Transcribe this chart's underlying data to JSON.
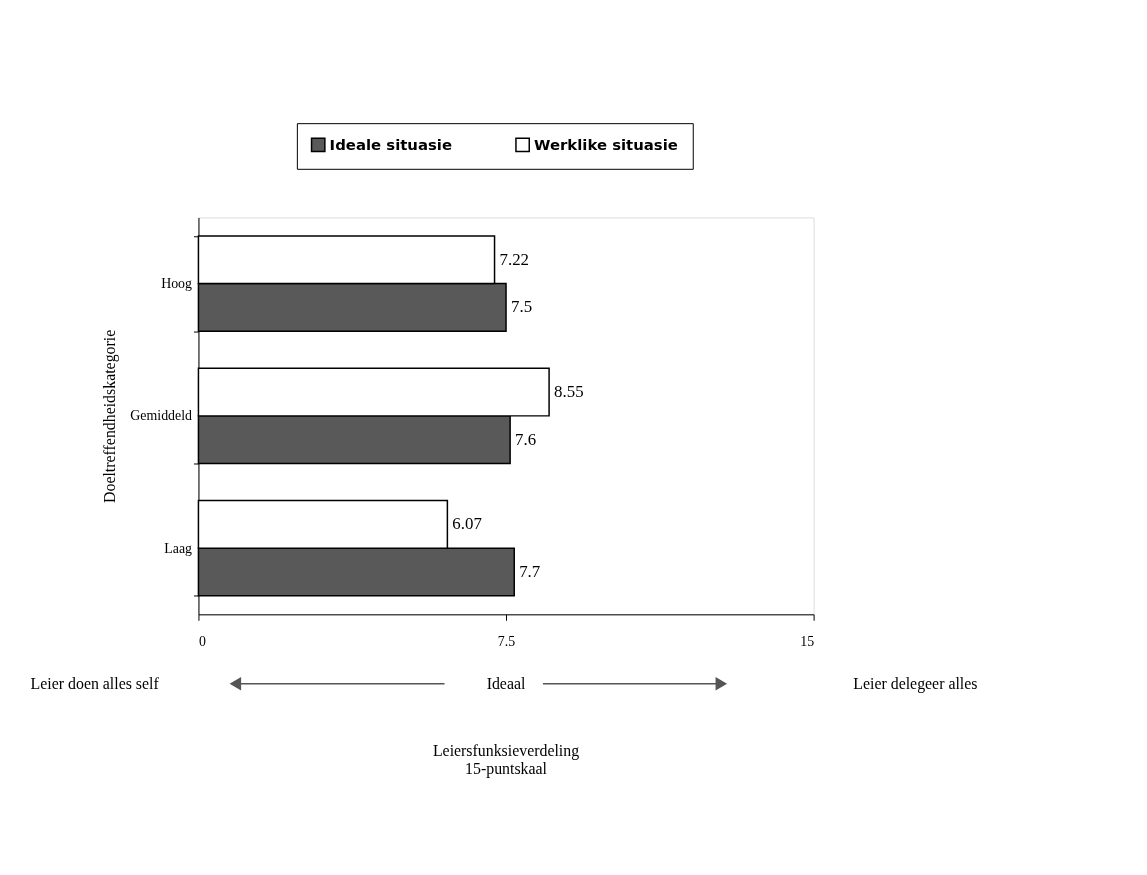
{
  "chart_data": {
    "type": "bar",
    "orientation": "horizontal",
    "categories": [
      "Hoog",
      "Gemiddeld",
      "Laag"
    ],
    "series": [
      {
        "name": "Ideale situasie",
        "color": "#595959",
        "values": [
          7.5,
          7.6,
          7.7
        ]
      },
      {
        "name": "Werklike situasie",
        "color": "#ffffff",
        "values": [
          7.22,
          8.55,
          6.07
        ]
      }
    ],
    "xlim": [
      0,
      15
    ],
    "xticks": [
      0,
      7.5,
      15
    ],
    "ylabel": "Doeltreffendheidskategorie",
    "annotations": [
      "Leier doen alles self",
      "Ideaal",
      "Leier delegeer alles",
      "Leiersfunksieverdeling\n15-puntskaal"
    ],
    "data_labels": true,
    "grid": false,
    "legend": "top"
  }
}
